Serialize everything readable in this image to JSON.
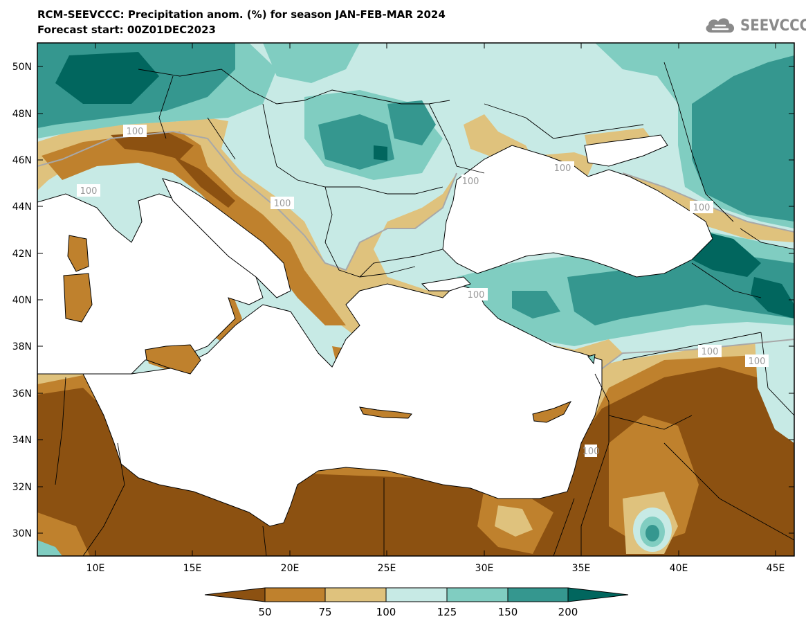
{
  "title": {
    "line1": "RCM-SEEVCCC: Precipitation anom. (%) for season JAN-FEB-MAR 2024",
    "line2": "Forecast start: 00Z01DEC2023"
  },
  "logo": {
    "text": "SEEVCCC",
    "icon": "cloud-icon"
  },
  "axes": {
    "lat_labels": [
      "50N",
      "48N",
      "46N",
      "44N",
      "42N",
      "40N",
      "38N",
      "36N",
      "34N",
      "32N",
      "30N"
    ],
    "lon_labels": [
      "10E",
      "15E",
      "20E",
      "25E",
      "30E",
      "35E",
      "40E",
      "45E"
    ]
  },
  "contour_labels": [
    "100",
    "100",
    "100",
    "100",
    "100",
    "100",
    "100",
    "100",
    "100",
    "100"
  ],
  "colorbar": {
    "labels": [
      "50",
      "75",
      "100",
      "125",
      "150",
      "200"
    ],
    "colors": [
      "#8c5111",
      "#bf812d",
      "#dfc27d",
      "#c7eae5",
      "#80cdc1",
      "#35978f",
      "#01665e"
    ]
  },
  "palette": {
    "sea": "#ffffff",
    "contour_line": "#a8a8a8",
    "border_line": "#000000"
  }
}
